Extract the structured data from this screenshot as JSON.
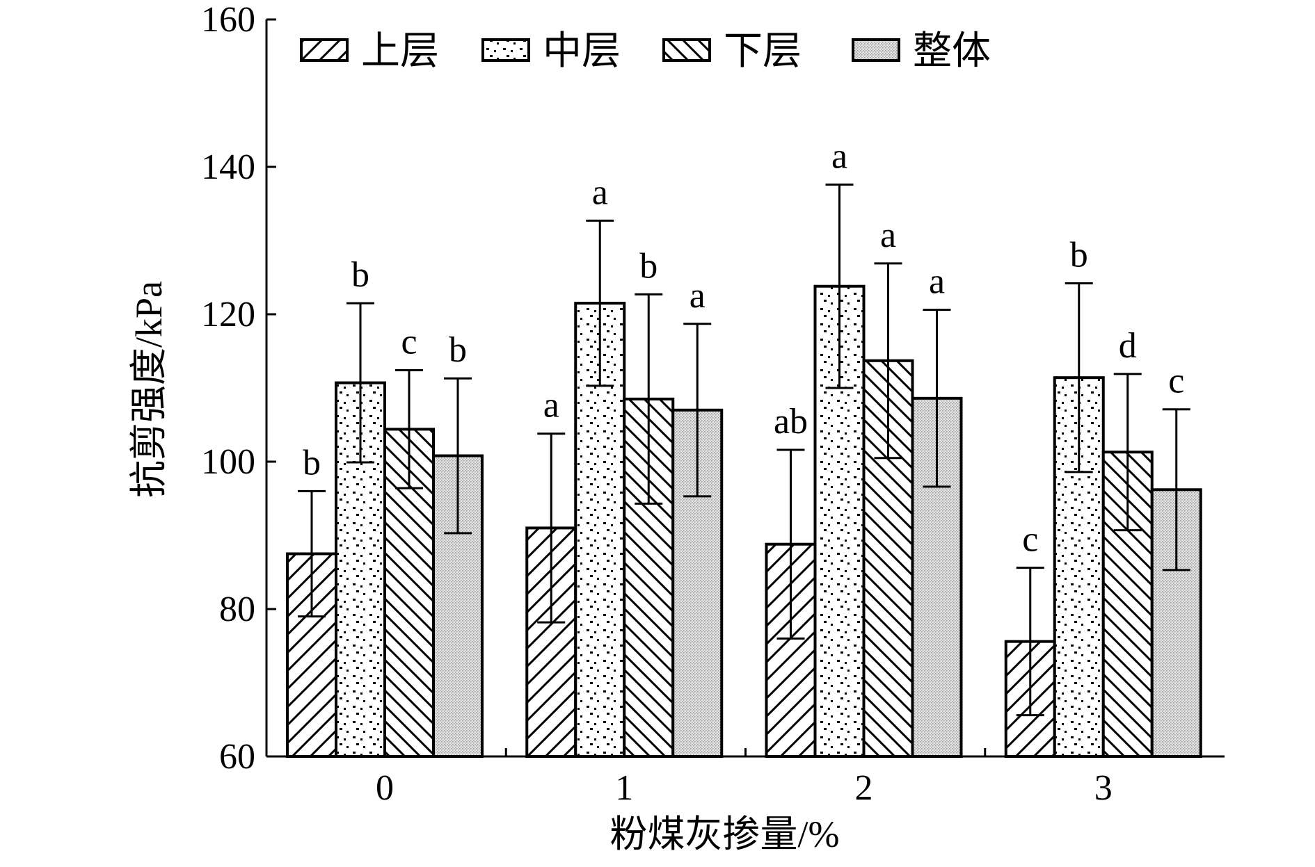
{
  "chart_data": {
    "type": "bar",
    "title": "",
    "xlabel": "粉煤灰掺量/%",
    "ylabel": "抗剪强度/kPa",
    "ylim": [
      60,
      160
    ],
    "yticks": [
      "60",
      "80",
      "100",
      "120",
      "140",
      "160"
    ],
    "categories": [
      "0",
      "1",
      "2",
      "3"
    ],
    "grid": false,
    "legend_position": "top",
    "series": [
      {
        "name": "上层",
        "pattern": "diagonal-forward",
        "values": [
          87.5,
          91.0,
          88.8,
          75.6
        ],
        "errors": [
          8.5,
          12.8,
          12.8,
          10.0
        ],
        "labels": [
          "b",
          "a",
          "ab",
          "c"
        ]
      },
      {
        "name": "中层",
        "pattern": "dots",
        "values": [
          110.7,
          121.5,
          123.8,
          111.4
        ],
        "errors": [
          10.8,
          11.2,
          13.8,
          12.8
        ],
        "labels": [
          "b",
          "a",
          "a",
          "b"
        ]
      },
      {
        "name": "下层",
        "pattern": "diagonal-backward",
        "values": [
          104.4,
          108.5,
          113.7,
          101.3
        ],
        "errors": [
          8.0,
          14.2,
          13.2,
          10.6
        ],
        "labels": [
          "c",
          "b",
          "a",
          "d"
        ]
      },
      {
        "name": "整体",
        "pattern": "fine-fill",
        "values": [
          100.8,
          107.0,
          108.6,
          96.2
        ],
        "errors": [
          10.5,
          11.7,
          12.0,
          10.9
        ],
        "labels": [
          "b",
          "a",
          "a",
          "c"
        ]
      }
    ],
    "colors": {
      "axis": "#000000",
      "bar_stroke": "#000000",
      "fill_base": "#ffffff",
      "fine_fill": "#d8d8d8"
    }
  }
}
